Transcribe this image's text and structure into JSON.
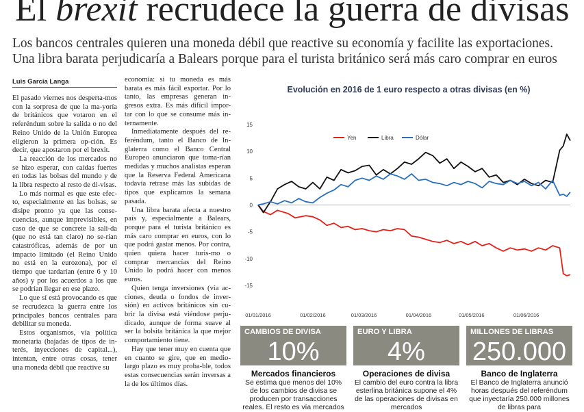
{
  "headline": {
    "pre": "El ",
    "italic": "brexit",
    "post": " recrudece la guerra de divisas"
  },
  "subtitle": [
    "Los bancos centrales quieren una moneda débil que reactive su economía y facilite las exportaciones.",
    "Una libra barata perjudicaría a Balears porque para el turista británico será más caro comprar en euros"
  ],
  "author": "Luis García Langa",
  "col1": [
    "El pasado viernes nos desperta-mos con la sorpresa de que la ma-yoría de británicos que votaron en el referéndum sobre la salida o no del Reino Unido de la Unión Europea eligieron la primera op-ción. Es decir, que apostaron por el brexit.",
    "La reacción de los mercados no se hizo esperar, con caídas fuertes en todas las bolsas del mundo y de la libra respecto al resto de di-visas.",
    "Lo más normal es que este efec-to, especialmente en las bolsas, se disipe pronto ya que las conse-cuencias, aunque imprevisibles, en caso de que se concrete la sali-da (que no está tan claro) no se-rían catastróficas, además de por un impacto limitado (el Reino Unido no está en la eurozona), por el tiempo que tardarían (entre 6 y 10 años) y por los acuerdos a los que se podrían llegar en ese plazo.",
    "Lo que sí está provocando es que se recrudezca la guerra entre los principales bancos centrales para debilitar su moneda.",
    "Estos organismos, vía política monetaria (bajadas de tipos de in-terés, inyecciones de capital...), intentan, entre otras cosas, tener una moneda débil que reactive su"
  ],
  "col2": [
    "economía: si tu moneda es más barata es más fácil exportar. Por lo tanto, las empresas generan in-gresos extra. Es más difícil impor-tar con lo que se consume más in-ternamente.",
    "Inmediatamente después del re-feréndum, tanto el Banco de In-glaterra como el Banco Central Europeo anunciaron que toma-rían medidas y muchos analistas esperan que la Reserva Federal Americana todavía retrase más las subidas de tipos que explicamos la semana pasada.",
    "Una libra barata afecta a nuestro país y, especialmente a Balears, porque para el turista británico es más caro comprar en euros, con lo que podrá gastar menos. Por contra, quien quiera hacer turis-mo o comprar mercancías del Reino Unido lo podrá hacer con menos euros.",
    "Quien tenga inversiones (vía ac-ciones, deuda o fondos de inver-sión) en activos británicos sin cu-brir la divisa está viéndose perju-dicado, aunque de forma suave al ser la bolsita británica la que mejor comportamiento tiene.",
    "Hay que tener muy en cuenta que en cuanto se gire, que en medio-largo plazo es muy proba-ble, todos estas consecuencias serán inversas a la de los últimos días."
  ],
  "stats": [
    {
      "label": "CAMBIOS DE DIVISA",
      "value": "10%",
      "title": "Mercados financieros",
      "text": "Se estima que menos del 10% de los cambios de divisa se producen por transacciones reales. El resto es vía mercados"
    },
    {
      "label": "EURO Y LIBRA",
      "value": "4%",
      "title": "Operaciones de divisa",
      "text": "El cambio del euro contra la libra esterlina británica supone el 4% de las operaciones de divisas en mercados"
    },
    {
      "label": "MILLONES DE LIBRAS",
      "value": "250.000",
      "title": "Banco de Inglaterra",
      "text": "El Banco de Inglaterra anunció horas después del referéndum que inyectaría 250.000 millones de libras para"
    }
  ],
  "chart_data": {
    "type": "line",
    "title": "Evolución en 2016  de 1 euro respecto a otras divisas (en %)",
    "ylim": [
      -15,
      15
    ],
    "yticks": [
      15,
      10,
      5,
      0,
      -5,
      -10,
      -15
    ],
    "xticks": [
      "01/01/2016",
      "01/02/2016",
      "01/03/2016",
      "01/04/2016",
      "01/05/2016",
      "01/06/2016"
    ],
    "legend_position": "top-left",
    "grid": false,
    "series": [
      {
        "name": "Yen",
        "color": "#e32119",
        "x": [
          1,
          4,
          8,
          12,
          18,
          22,
          28,
          32,
          36,
          40,
          44,
          48,
          52,
          56,
          60,
          64,
          68,
          72,
          76,
          80,
          84,
          88,
          92,
          96,
          100,
          104,
          108,
          112,
          116,
          120,
          124,
          128,
          132,
          136,
          140,
          144,
          148,
          152,
          156,
          160,
          164,
          168,
          172,
          174,
          176,
          178
        ],
        "values": [
          0,
          -1.2,
          -1.8,
          -1.0,
          -1.6,
          -2.4,
          -2.0,
          -2.2,
          -2.8,
          -3.8,
          -3.4,
          -4.2,
          -4.0,
          -4.6,
          -4.4,
          -4.8,
          -5.0,
          -4.6,
          -4.8,
          -4.4,
          -4.6,
          -5.8,
          -6.0,
          -6.4,
          -6.8,
          -7.0,
          -6.6,
          -7.2,
          -6.8,
          -7.4,
          -6.8,
          -7.6,
          -7.2,
          -8.0,
          -8.6,
          -8.0,
          -8.4,
          -8.2,
          -8.6,
          -8.0,
          -8.4,
          -7.6,
          -8.0,
          -12.8,
          -13.2,
          -13.0
        ]
      },
      {
        "name": "Libra",
        "color": "#111111",
        "x": [
          1,
          4,
          8,
          12,
          16,
          20,
          24,
          28,
          32,
          36,
          40,
          44,
          48,
          52,
          56,
          60,
          64,
          68,
          72,
          76,
          80,
          84,
          88,
          92,
          96,
          100,
          104,
          108,
          112,
          116,
          120,
          124,
          128,
          132,
          136,
          140,
          144,
          148,
          152,
          156,
          160,
          164,
          168,
          172,
          174,
          176,
          178
        ],
        "values": [
          0,
          -1.4,
          0.6,
          3.0,
          3.8,
          4.4,
          3.4,
          3.0,
          4.2,
          3.0,
          5.2,
          4.6,
          6.6,
          6.0,
          6.4,
          7.2,
          7.4,
          5.6,
          6.6,
          5.8,
          6.8,
          8.0,
          7.6,
          8.6,
          9.8,
          9.2,
          7.8,
          8.6,
          6.8,
          8.0,
          7.2,
          6.2,
          6.8,
          5.2,
          5.6,
          4.2,
          4.6,
          3.8,
          4.8,
          4.0,
          3.6,
          4.6,
          4.2,
          10.2,
          11.0,
          13.2,
          12.0
        ]
      },
      {
        "name": "Dólar",
        "color": "#2a6fbd",
        "x": [
          1,
          4,
          8,
          12,
          16,
          20,
          24,
          28,
          32,
          36,
          40,
          44,
          48,
          52,
          56,
          60,
          64,
          68,
          72,
          76,
          80,
          84,
          88,
          92,
          96,
          100,
          104,
          108,
          112,
          116,
          120,
          124,
          128,
          132,
          136,
          140,
          144,
          148,
          152,
          156,
          160,
          164,
          168,
          172,
          174,
          176,
          178
        ],
        "values": [
          0,
          0.2,
          0.6,
          0.2,
          0.8,
          0.4,
          1.2,
          0.6,
          0.4,
          1.4,
          2.2,
          2.8,
          3.8,
          3.4,
          4.6,
          5.0,
          4.6,
          5.4,
          4.8,
          5.8,
          5.4,
          4.8,
          5.8,
          4.6,
          4.8,
          4.2,
          4.0,
          3.6,
          4.2,
          3.8,
          4.4,
          4.0,
          3.2,
          4.4,
          4.0,
          3.8,
          4.6,
          4.0,
          4.4,
          3.6,
          4.2,
          3.0,
          4.6,
          1.8,
          2.0,
          1.6,
          2.4
        ]
      }
    ]
  }
}
